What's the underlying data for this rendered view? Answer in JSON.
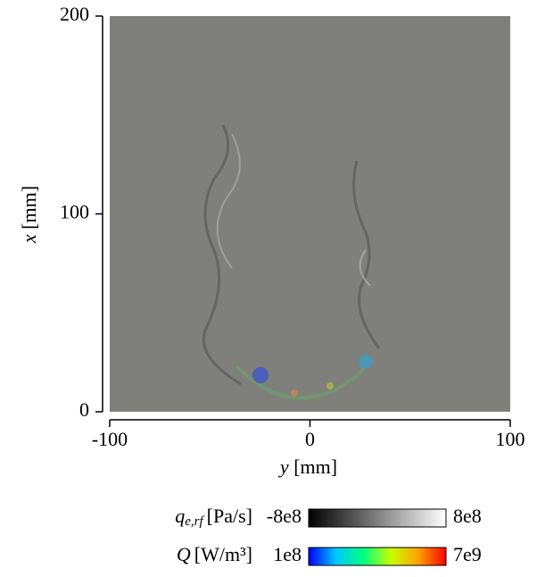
{
  "chart_data": {
    "type": "image",
    "x_label": {
      "symbol": "y",
      "unit": "[mm]"
    },
    "y_label": {
      "symbol": "x",
      "unit": "[mm]"
    },
    "xlim": [
      -100,
      100
    ],
    "xticks": [
      -100,
      0,
      100
    ],
    "ylim": [
      0,
      200
    ],
    "yticks": [
      0,
      100,
      200
    ],
    "background": "#7f7f7c",
    "colorbars": [
      {
        "symbol": "q",
        "subscript": "e,rf",
        "unit": "[Pa/s]",
        "lim": [
          -800000000,
          800000000
        ],
        "ticks": [
          {
            "value": -800000000,
            "label": "-8e8"
          },
          {
            "value": 800000000,
            "label": "8e8"
          }
        ],
        "colors": [
          "#000000",
          "#808080",
          "#ffffff"
        ]
      },
      {
        "symbol": "Q",
        "subscript": null,
        "unit": "[W/m³]",
        "lim": [
          100000000,
          7000000000
        ],
        "ticks": [
          {
            "value": 100000000,
            "label": "1e8"
          },
          {
            "value": 7000000000,
            "label": "7e9"
          }
        ],
        "colors": [
          "#0000ff",
          "#00c8ff",
          "#00ff80",
          "#c8ff00",
          "#ffa000",
          "#ff0000"
        ]
      }
    ]
  }
}
